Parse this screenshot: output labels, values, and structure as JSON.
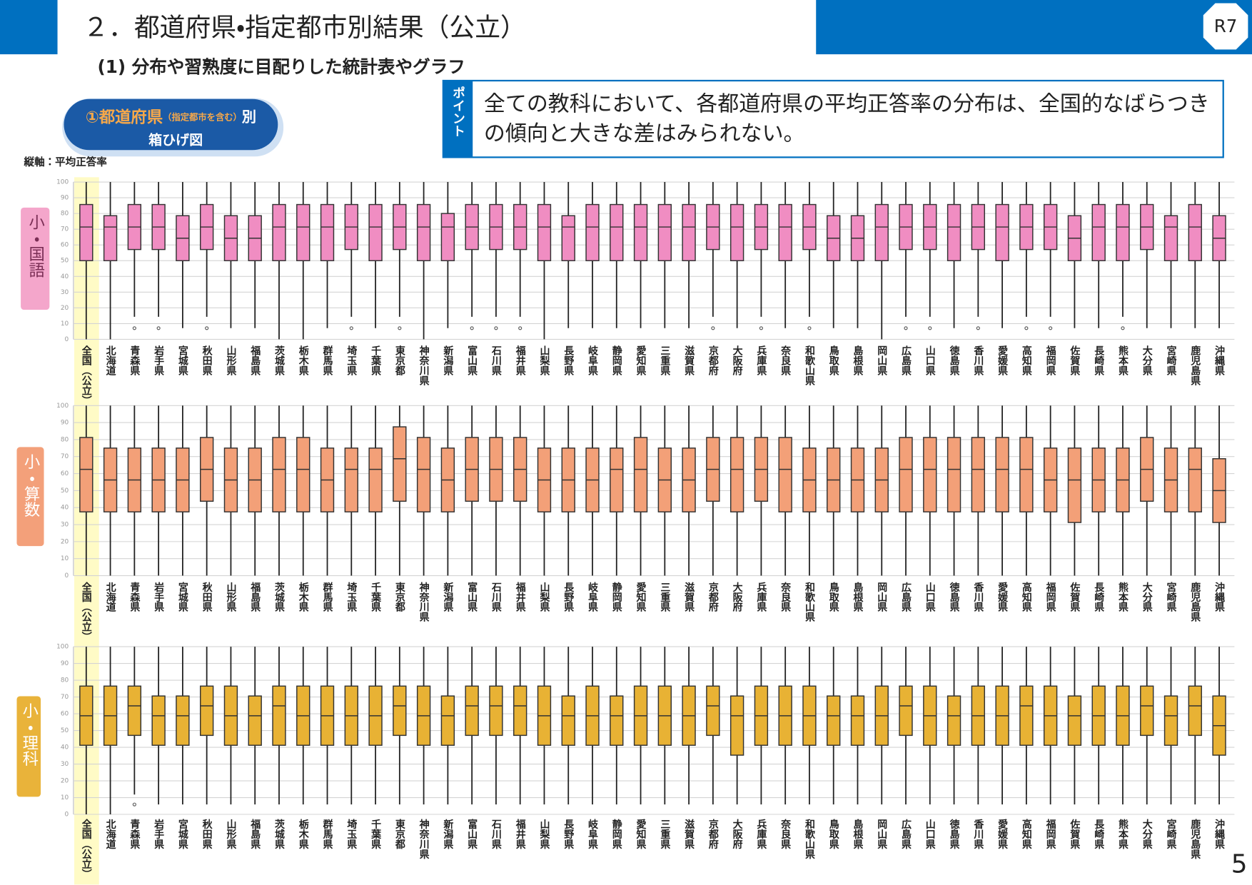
{
  "header": {
    "title": "２．都道府県・指定都市別結果（公立）",
    "badge": "R7",
    "subtitle": "(1) 分布や習熟度に目配りした統計表やグラフ"
  },
  "point": {
    "label": "ポイント",
    "text": "全ての教科において、各都道府県の平均正答率の分布は、全国的なばらつきの傾向と大きな差はみられない。"
  },
  "chart_label": {
    "main": "①都道府県",
    "note": "（指定都市を含む）",
    "suffix": "別",
    "line2": "箱ひげ図"
  },
  "axis_note": "縦軸：平均正答率",
  "page_number": 5,
  "chart_data": [
    {
      "type": "box",
      "title": "小・国語",
      "color": "#f08dc2",
      "grid": true,
      "categories": [
        "全国（公立）",
        "北海道",
        "青森県",
        "岩手県",
        "宮城県",
        "秋田県",
        "山形県",
        "福島県",
        "茨城県",
        "栃木県",
        "群馬県",
        "埼玉県",
        "千葉県",
        "東京都",
        "神奈川県",
        "新潟県",
        "富山県",
        "石川県",
        "福井県",
        "山梨県",
        "長野県",
        "岐阜県",
        "静岡県",
        "愛知県",
        "三重県",
        "滋賀県",
        "京都府",
        "大阪府",
        "兵庫県",
        "奈良県",
        "和歌山県",
        "鳥取県",
        "島根県",
        "岡山県",
        "広島県",
        "山口県",
        "徳島県",
        "香川県",
        "愛媛県",
        "高知県",
        "福岡県",
        "佐賀県",
        "長崎県",
        "熊本県",
        "大分県",
        "宮崎県",
        "鹿児島県",
        "沖縄県"
      ],
      "ylim": [
        0,
        100
      ],
      "yticks": [
        0,
        10,
        20,
        30,
        40,
        50,
        60,
        70,
        80,
        90,
        100
      ],
      "whishi": [
        100,
        100,
        100,
        100,
        100,
        100,
        100,
        100,
        100,
        100,
        100,
        100,
        100,
        100,
        100,
        100,
        100,
        100,
        100,
        100,
        100,
        100,
        100,
        100,
        100,
        100,
        100,
        100,
        100,
        100,
        100,
        100,
        100,
        100,
        100,
        100,
        100,
        100,
        100,
        100,
        100,
        100,
        100,
        100,
        100,
        100,
        100,
        100
      ],
      "q3": [
        85.7,
        78.6,
        85.7,
        85.7,
        78.6,
        85.7,
        78.6,
        78.6,
        85.7,
        85.7,
        85.7,
        85.7,
        85.7,
        85.7,
        85.7,
        80,
        85.7,
        85.7,
        85.7,
        85.7,
        78.6,
        85.7,
        85.7,
        85.7,
        85.7,
        85.7,
        85.7,
        85.7,
        85.7,
        85.7,
        85.7,
        78.6,
        78.6,
        85.7,
        85.7,
        85.7,
        85.7,
        85.7,
        85.7,
        85.7,
        85.7,
        78.6,
        85.7,
        85.7,
        85.7,
        78.6,
        85.7,
        78.6
      ],
      "med": [
        71.4,
        71.4,
        71.4,
        71.4,
        64.3,
        71.4,
        64.3,
        64.3,
        71.4,
        71.4,
        71.4,
        71.4,
        71.4,
        71.4,
        71.4,
        71.4,
        71.4,
        71.4,
        71.4,
        71.4,
        71.4,
        71.4,
        71.4,
        71.4,
        71.4,
        71.4,
        71.4,
        71.4,
        71.4,
        71.4,
        71.4,
        64.3,
        64.3,
        71.4,
        71.4,
        71.4,
        71.4,
        71.4,
        71.4,
        71.4,
        71.4,
        64.3,
        71.4,
        71.4,
        71.4,
        71.4,
        71.4,
        64.3
      ],
      "q1": [
        50,
        50,
        57.1,
        57.1,
        50,
        57.1,
        50,
        50,
        50,
        50,
        50,
        57.1,
        50,
        57.1,
        50,
        50,
        57.1,
        57.1,
        57.1,
        50,
        50,
        50,
        50,
        50,
        50,
        50,
        57.1,
        50,
        57.1,
        50,
        57.1,
        50,
        50,
        50,
        57.1,
        57.1,
        50,
        57.1,
        50,
        57.1,
        57.1,
        50,
        50,
        50,
        57.1,
        50,
        50,
        50
      ],
      "whislo": [
        0,
        0,
        14.3,
        14.3,
        7.1,
        14.3,
        7.1,
        7.1,
        0,
        0,
        7.1,
        14.3,
        7.1,
        14.3,
        0,
        7.1,
        14.3,
        14.3,
        14.3,
        0,
        7.1,
        7.1,
        7.1,
        7.1,
        7.1,
        7.1,
        14.3,
        7.1,
        14.3,
        7.1,
        14.3,
        7.1,
        7.1,
        0,
        14.3,
        14.3,
        7.1,
        14.3,
        7.1,
        14.3,
        14.3,
        7.1,
        7.1,
        14.3,
        7.1,
        7.1,
        7.1,
        7.1
      ],
      "fliers": [
        [],
        [],
        [
          7.1
        ],
        [
          7.1
        ],
        [],
        [
          7.1
        ],
        [],
        [],
        [],
        [],
        [],
        [
          7.1
        ],
        [],
        [
          7.1
        ],
        [],
        [],
        [
          7.1
        ],
        [
          7.1
        ],
        [
          7.1
        ],
        [],
        [],
        [],
        [],
        [],
        [],
        [],
        [
          7.1
        ],
        [],
        [
          7.1
        ],
        [],
        [
          7.1
        ],
        [],
        [],
        [],
        [
          7.1
        ],
        [
          7.1
        ],
        [],
        [
          7.1
        ],
        [],
        [
          7.1
        ],
        [
          7.1
        ],
        [],
        [],
        [
          7.1
        ],
        [],
        [],
        [],
        []
      ]
    },
    {
      "type": "box",
      "title": "小・算数",
      "color": "#f3a078",
      "grid": true,
      "categories": [
        "全国（公立）",
        "北海道",
        "青森県",
        "岩手県",
        "宮城県",
        "秋田県",
        "山形県",
        "福島県",
        "茨城県",
        "栃木県",
        "群馬県",
        "埼玉県",
        "千葉県",
        "東京都",
        "神奈川県",
        "新潟県",
        "富山県",
        "石川県",
        "福井県",
        "山梨県",
        "長野県",
        "岐阜県",
        "静岡県",
        "愛知県",
        "三重県",
        "滋賀県",
        "京都府",
        "大阪府",
        "兵庫県",
        "奈良県",
        "和歌山県",
        "鳥取県",
        "島根県",
        "岡山県",
        "広島県",
        "山口県",
        "徳島県",
        "香川県",
        "愛媛県",
        "高知県",
        "福岡県",
        "佐賀県",
        "長崎県",
        "熊本県",
        "大分県",
        "宮崎県",
        "鹿児島県",
        "沖縄県"
      ],
      "ylim": [
        0,
        100
      ],
      "yticks": [
        0,
        10,
        20,
        30,
        40,
        50,
        60,
        70,
        80,
        90,
        100
      ],
      "whishi": [
        100,
        100,
        100,
        100,
        100,
        100,
        100,
        100,
        100,
        100,
        100,
        100,
        100,
        100,
        100,
        100,
        100,
        100,
        100,
        100,
        100,
        100,
        100,
        100,
        100,
        100,
        100,
        100,
        100,
        100,
        100,
        100,
        100,
        100,
        100,
        100,
        100,
        100,
        100,
        100,
        100,
        100,
        100,
        100,
        100,
        100,
        100,
        100
      ],
      "q3": [
        81.25,
        75,
        75,
        75,
        75,
        81.25,
        75,
        75,
        81.25,
        81.25,
        75,
        75,
        75,
        87.5,
        81.25,
        75,
        81.25,
        81.25,
        81.25,
        75,
        75,
        75,
        75,
        81.25,
        75,
        75,
        81.25,
        81.25,
        81.25,
        81.25,
        75,
        75,
        75,
        75,
        81.25,
        81.25,
        81.25,
        81.25,
        81.25,
        81.25,
        75,
        75,
        75,
        75,
        81.25,
        75,
        75,
        68.75
      ],
      "med": [
        62.5,
        56.25,
        56.25,
        56.25,
        56.25,
        62.5,
        56.25,
        56.25,
        62.5,
        62.5,
        56.25,
        62.5,
        62.5,
        68.75,
        62.5,
        56.25,
        62.5,
        62.5,
        62.5,
        56.25,
        56.25,
        56.25,
        62.5,
        62.5,
        56.25,
        56.25,
        62.5,
        62.5,
        62.5,
        62.5,
        56.25,
        56.25,
        56.25,
        56.25,
        62.5,
        62.5,
        62.5,
        62.5,
        62.5,
        62.5,
        56.25,
        56.25,
        56.25,
        56.25,
        62.5,
        56.25,
        62.5,
        50
      ],
      "q1": [
        37.5,
        37.5,
        37.5,
        37.5,
        37.5,
        43.75,
        37.5,
        37.5,
        37.5,
        37.5,
        37.5,
        37.5,
        37.5,
        43.75,
        37.5,
        37.5,
        43.75,
        43.75,
        43.75,
        37.5,
        37.5,
        37.5,
        37.5,
        37.5,
        37.5,
        37.5,
        43.75,
        37.5,
        43.75,
        37.5,
        37.5,
        37.5,
        37.5,
        37.5,
        37.5,
        37.5,
        37.5,
        37.5,
        37.5,
        37.5,
        37.5,
        31.25,
        37.5,
        37.5,
        43.75,
        37.5,
        37.5,
        31.25
      ],
      "whislo": [
        0,
        0,
        0,
        0,
        0,
        0,
        0,
        0,
        0,
        0,
        0,
        0,
        0,
        0,
        0,
        0,
        0,
        0,
        0,
        0,
        0,
        0,
        0,
        0,
        0,
        0,
        0,
        0,
        0,
        0,
        0,
        0,
        0,
        0,
        0,
        0,
        0,
        0,
        0,
        0,
        0,
        0,
        0,
        0,
        0,
        0,
        0,
        0
      ]
    },
    {
      "type": "box",
      "title": "小・理科",
      "color": "#e8b234",
      "grid": true,
      "categories": [
        "全国（公立）",
        "北海道",
        "青森県",
        "岩手県",
        "宮城県",
        "秋田県",
        "山形県",
        "福島県",
        "茨城県",
        "栃木県",
        "群馬県",
        "埼玉県",
        "千葉県",
        "東京都",
        "神奈川県",
        "新潟県",
        "富山県",
        "石川県",
        "福井県",
        "山梨県",
        "長野県",
        "岐阜県",
        "静岡県",
        "愛知県",
        "三重県",
        "滋賀県",
        "京都府",
        "大阪府",
        "兵庫県",
        "奈良県",
        "和歌山県",
        "鳥取県",
        "島根県",
        "岡山県",
        "広島県",
        "山口県",
        "徳島県",
        "香川県",
        "愛媛県",
        "高知県",
        "福岡県",
        "佐賀県",
        "長崎県",
        "熊本県",
        "大分県",
        "宮崎県",
        "鹿児島県",
        "沖縄県"
      ],
      "ylim": [
        0,
        100
      ],
      "yticks": [
        0,
        10,
        20,
        30,
        40,
        50,
        60,
        70,
        80,
        90,
        100
      ],
      "whishi": [
        100,
        100,
        100,
        100,
        100,
        100,
        100,
        100,
        100,
        100,
        100,
        100,
        100,
        100,
        100,
        100,
        100,
        100,
        100,
        100,
        100,
        100,
        100,
        100,
        100,
        100,
        100,
        100,
        100,
        100,
        100,
        100,
        100,
        100,
        100,
        100,
        100,
        100,
        100,
        100,
        100,
        100,
        100,
        100,
        100,
        100,
        100,
        100
      ],
      "q3": [
        76.5,
        76.5,
        76.5,
        70.6,
        70.6,
        76.5,
        76.5,
        70.6,
        76.5,
        76.5,
        76.5,
        76.5,
        76.5,
        76.5,
        76.5,
        70.6,
        76.5,
        76.5,
        76.5,
        76.5,
        70.6,
        76.5,
        70.6,
        76.5,
        76.5,
        76.5,
        76.5,
        70.6,
        76.5,
        76.5,
        76.5,
        70.6,
        70.6,
        76.5,
        76.5,
        76.5,
        70.6,
        76.5,
        76.5,
        76.5,
        76.5,
        70.6,
        76.5,
        76.5,
        76.5,
        70.6,
        76.5,
        70.6
      ],
      "med": [
        58.8,
        58.8,
        64.7,
        58.8,
        58.8,
        64.7,
        58.8,
        58.8,
        64.7,
        58.8,
        58.8,
        58.8,
        58.8,
        64.7,
        58.8,
        58.8,
        64.7,
        64.7,
        64.7,
        58.8,
        58.8,
        58.8,
        58.8,
        58.8,
        58.8,
        58.8,
        64.7,
        58.8,
        58.8,
        58.8,
        58.8,
        58.8,
        58.8,
        58.8,
        64.7,
        58.8,
        58.8,
        58.8,
        58.8,
        64.7,
        58.8,
        58.8,
        58.8,
        58.8,
        64.7,
        58.8,
        64.7,
        52.9
      ],
      "q1": [
        41.2,
        41.2,
        47.1,
        41.2,
        41.2,
        47.1,
        41.2,
        41.2,
        41.2,
        41.2,
        41.2,
        41.2,
        41.2,
        47.1,
        41.2,
        41.2,
        47.1,
        47.1,
        47.1,
        41.2,
        41.2,
        41.2,
        41.2,
        41.2,
        41.2,
        41.2,
        47.1,
        35.3,
        41.2,
        41.2,
        41.2,
        41.2,
        41.2,
        41.2,
        47.1,
        41.2,
        41.2,
        41.2,
        41.2,
        41.2,
        41.2,
        41.2,
        41.2,
        41.2,
        47.1,
        41.2,
        47.1,
        35.3
      ],
      "whislo": [
        0,
        0,
        11.8,
        5.9,
        5.9,
        5.9,
        5.9,
        5.9,
        5.9,
        5.9,
        5.9,
        5.9,
        5.9,
        5.9,
        5.9,
        5.9,
        5.9,
        5.9,
        5.9,
        5.9,
        5.9,
        5.9,
        5.9,
        5.9,
        5.9,
        5.9,
        5.9,
        5.9,
        5.9,
        5.9,
        5.9,
        5.9,
        5.9,
        5.9,
        5.9,
        5.9,
        5.9,
        5.9,
        5.9,
        5.9,
        5.9,
        5.9,
        5.9,
        5.9,
        5.9,
        5.9,
        5.9,
        5.9
      ],
      "fliers": [
        [],
        [],
        [
          5.9
        ],
        [],
        [],
        [],
        [],
        [],
        [],
        [],
        [],
        [],
        [],
        [],
        [],
        [],
        [],
        [],
        [],
        [],
        [],
        [],
        [],
        [],
        [],
        [],
        [],
        [],
        [],
        [],
        [],
        [],
        [],
        [],
        [],
        [],
        [],
        [],
        [],
        [],
        [],
        [],
        [],
        [],
        [],
        [],
        [],
        []
      ]
    }
  ]
}
